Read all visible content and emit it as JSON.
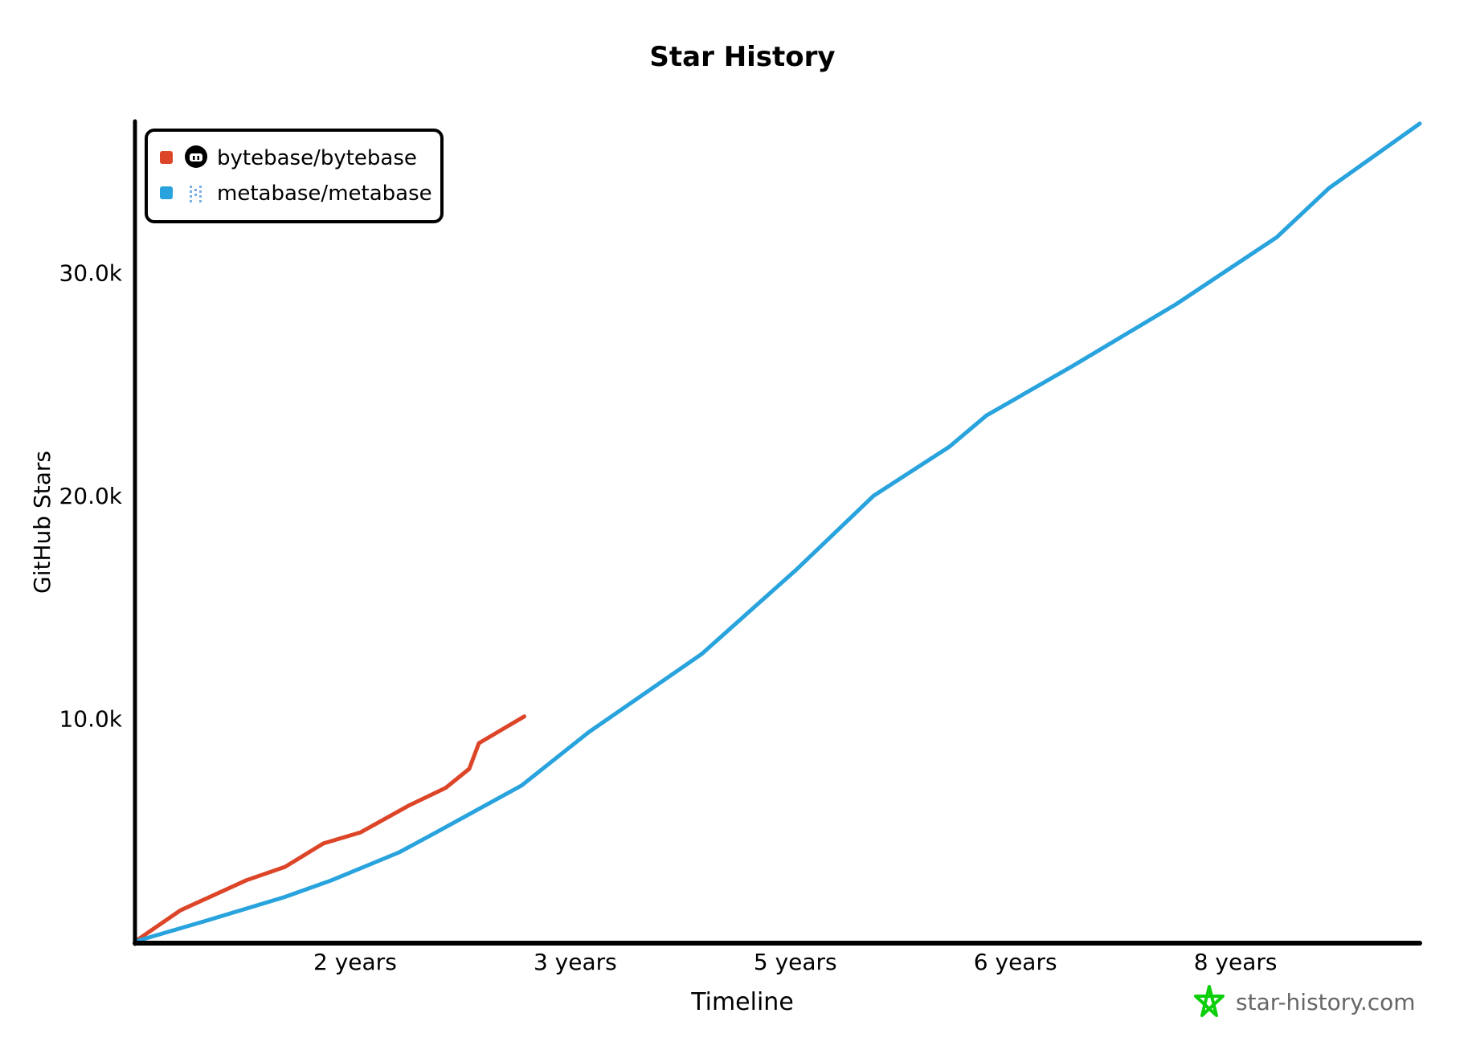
{
  "chart_data": {
    "type": "line",
    "title": "Star History",
    "xlabel": "Timeline",
    "ylabel": "GitHub Stars",
    "xlim": [
      0,
      9.34
    ],
    "ylim": [
      0,
      36800
    ],
    "x_ticks": [
      {
        "value": 1.6,
        "label": "2 years"
      },
      {
        "value": 3.2,
        "label": "3 years"
      },
      {
        "value": 4.8,
        "label": "5 years"
      },
      {
        "value": 6.4,
        "label": "6 years"
      },
      {
        "value": 8.0,
        "label": "8 years"
      }
    ],
    "y_ticks": [
      {
        "value": 10000,
        "label": "10.0k"
      },
      {
        "value": 20000,
        "label": "20.0k"
      },
      {
        "value": 30000,
        "label": "30.0k"
      }
    ],
    "grid": false,
    "legend_position": "top-left",
    "series": [
      {
        "name": "bytebase/bytebase",
        "color": "#dd4528",
        "icon": "github-avatar-icon",
        "x": [
          0,
          0.33,
          0.81,
          1.09,
          1.37,
          1.64,
          1.99,
          2.26,
          2.43,
          2.5,
          2.83
        ],
        "y": [
          0,
          1400,
          2750,
          3350,
          4400,
          4900,
          6100,
          6900,
          7750,
          8900,
          10100
        ]
      },
      {
        "name": "metabase/metabase",
        "color": "#28a3dd",
        "icon": "metabase-logo-icon",
        "x": [
          0,
          0.5,
          1.09,
          1.43,
          1.92,
          2.19,
          2.81,
          3.3,
          4.12,
          4.81,
          5.37,
          5.92,
          6.19,
          6.81,
          7.57,
          8.3,
          8.68,
          9.34
        ],
        "y": [
          0,
          900,
          2000,
          2750,
          4000,
          4900,
          7000,
          9400,
          12900,
          16700,
          20000,
          22200,
          23600,
          25800,
          28600,
          31600,
          33800,
          36700
        ]
      }
    ]
  },
  "watermark": {
    "text": "star-history.com",
    "color": "#0ccf0c"
  }
}
